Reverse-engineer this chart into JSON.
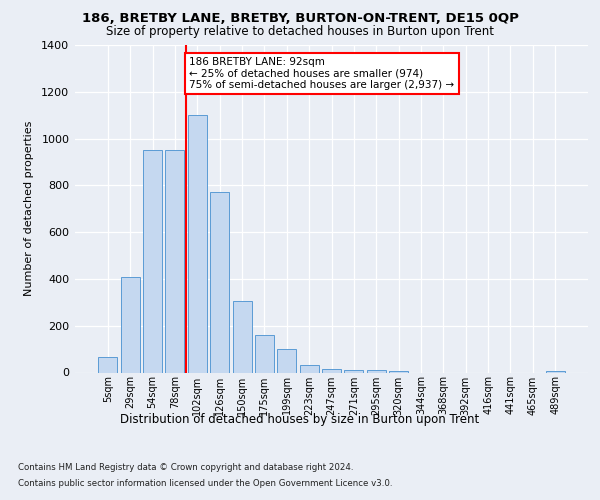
{
  "title1": "186, BRETBY LANE, BRETBY, BURTON-ON-TRENT, DE15 0QP",
  "title2": "Size of property relative to detached houses in Burton upon Trent",
  "xlabel": "Distribution of detached houses by size in Burton upon Trent",
  "ylabel": "Number of detached properties",
  "footer1": "Contains HM Land Registry data © Crown copyright and database right 2024.",
  "footer2": "Contains public sector information licensed under the Open Government Licence v3.0.",
  "categories": [
    "5sqm",
    "29sqm",
    "54sqm",
    "78sqm",
    "102sqm",
    "126sqm",
    "150sqm",
    "175sqm",
    "199sqm",
    "223sqm",
    "247sqm",
    "271sqm",
    "295sqm",
    "320sqm",
    "344sqm",
    "368sqm",
    "392sqm",
    "416sqm",
    "441sqm",
    "465sqm",
    "489sqm"
  ],
  "values": [
    65,
    410,
    950,
    950,
    1100,
    770,
    305,
    160,
    100,
    30,
    15,
    12,
    10,
    5,
    0,
    0,
    0,
    0,
    0,
    0,
    5
  ],
  "bar_color": "#c5d8f0",
  "bar_edge_color": "#5b9bd5",
  "vline_x": 3.5,
  "vline_color": "red",
  "annotation_text": "186 BRETBY LANE: 92sqm\n← 25% of detached houses are smaller (974)\n75% of semi-detached houses are larger (2,937) →",
  "annotation_box_color": "white",
  "annotation_box_edge": "red",
  "ylim": [
    0,
    1400
  ],
  "yticks": [
    0,
    200,
    400,
    600,
    800,
    1000,
    1200,
    1400
  ],
  "bg_color": "#eaeef5",
  "plot_bg_color": "#eaeef5"
}
